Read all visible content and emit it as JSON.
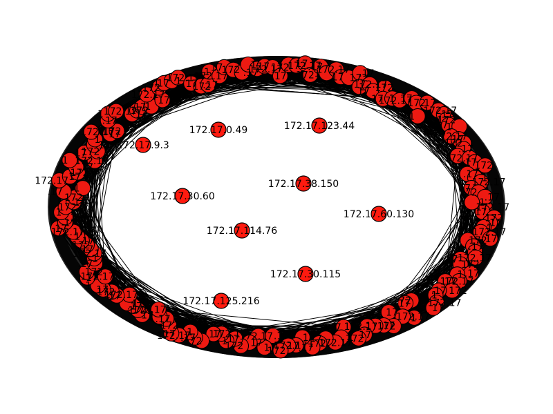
{
  "graph": {
    "layout": "circular ring with unplaced interior nodes",
    "node_color": "#ff1a0f",
    "edge_color": "#000000",
    "label_color": "#000000",
    "interior_nodes": [
      {
        "label": "172.17.0.49"
      },
      {
        "label": "172.17.123.44"
      },
      {
        "label": "172.17.38.150"
      },
      {
        "label": "172.17.30.60"
      },
      {
        "label": "172.17.60.130"
      },
      {
        "label": "172.17.114.76"
      },
      {
        "label": "172.17.30.115"
      },
      {
        "label": "172.17.125.216"
      },
      {
        "label": "172.17.9.3"
      }
    ]
  }
}
